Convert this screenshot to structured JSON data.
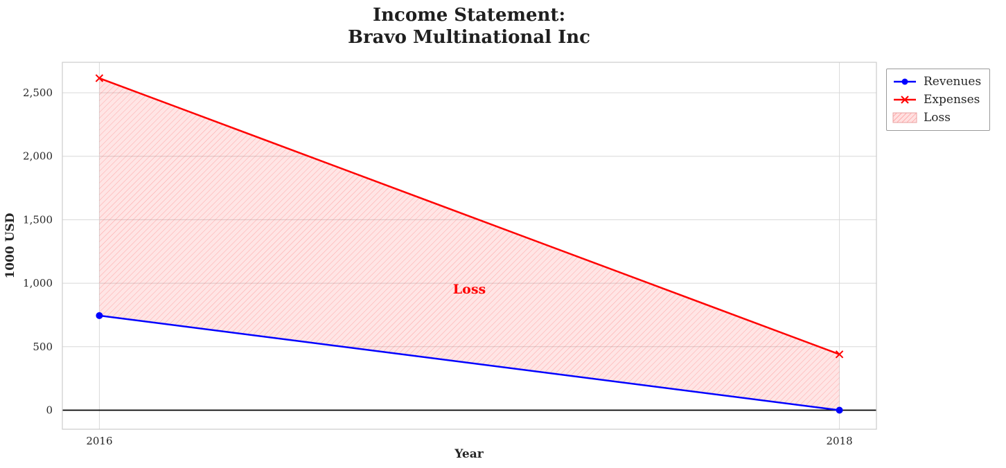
{
  "chart_data": {
    "type": "line",
    "title": "Income Statement:\nBravo Multinational Inc",
    "title_lines": [
      "Income Statement:",
      "Bravo Multinational Inc"
    ],
    "xlabel": "Year",
    "ylabel": "1000 USD",
    "x": [
      2016,
      2018
    ],
    "xticks": [
      2016,
      2018
    ],
    "xtick_labels": [
      "2016",
      "2018"
    ],
    "yticks": [
      0,
      500,
      1000,
      1500,
      2000,
      2500
    ],
    "ytick_labels": [
      "0",
      "500",
      "1,000",
      "1,500",
      "2,000",
      "2,500"
    ],
    "xlim": [
      2015.9,
      2018.1
    ],
    "ylim": [
      -150,
      2740
    ],
    "grid": true,
    "legend_position": "upper-right-outside",
    "legend_entries": [
      "Revenues",
      "Expenses",
      "Loss"
    ],
    "series": [
      {
        "name": "Revenues",
        "color": "#0000ff",
        "marker": "circle",
        "values": [
          745,
          0
        ]
      },
      {
        "name": "Expenses",
        "color": "#ff0000",
        "marker": "x",
        "values": [
          2615,
          440
        ]
      }
    ],
    "fill_between": {
      "label": "Loss",
      "color": "#ff0000",
      "fill_opacity": 0.1,
      "hatch": "diagonal",
      "hatch_opacity": 0.35
    },
    "annotation": {
      "text": "Loss",
      "x": 2017,
      "y": 920,
      "color": "#ff0000"
    },
    "zero_line": {
      "y": 0,
      "color": "#000000"
    }
  }
}
